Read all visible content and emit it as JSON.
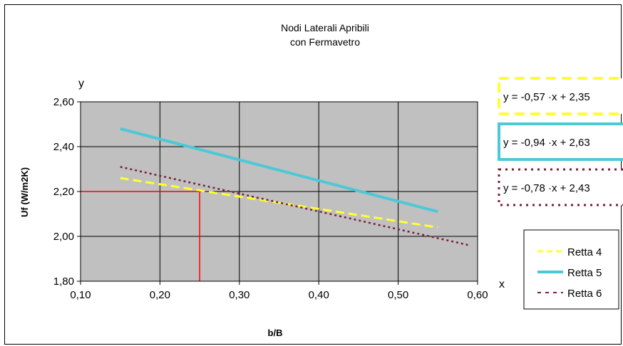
{
  "chart_data": {
    "type": "line",
    "title": "Nodi Laterali Apribili",
    "subtitle": "con Fermavetro",
    "xlabel": "b/B",
    "ylabel": "Uf (W/m2K)",
    "x_axis_letter": "x",
    "y_axis_letter": "y",
    "xlim": [
      0.1,
      0.6
    ],
    "ylim": [
      1.8,
      2.6
    ],
    "x_ticks": [
      "0,10",
      "0,20",
      "0,30",
      "0,40",
      "0,50",
      "0,60"
    ],
    "y_ticks": [
      "1,80",
      "2,00",
      "2,20",
      "2,40",
      "2,60"
    ],
    "grid": true,
    "plot_background": "#c0c0c0",
    "legend_position": "right",
    "series": [
      {
        "name": "Retta 4",
        "color": "#ffff33",
        "style": "dashed",
        "x": [
          0.15,
          0.55
        ],
        "y": [
          2.26,
          2.04
        ],
        "equation": "y = -0,57 ·x + 2,35"
      },
      {
        "name": "Retta 5",
        "color": "#4dc8d6",
        "style": "solid",
        "x": [
          0.15,
          0.55
        ],
        "y": [
          2.48,
          2.11
        ],
        "equation": "y = -0,94 ·x + 2,63"
      },
      {
        "name": "Retta 6",
        "color": "#7a1f3d",
        "style": "dotted",
        "x": [
          0.15,
          0.59
        ],
        "y": [
          2.31,
          1.96
        ],
        "equation": "y = -0,78 ·x + 2,43"
      }
    ],
    "reference_lines": {
      "color": "#ff0000",
      "x": 0.25,
      "y": 2.2
    }
  }
}
